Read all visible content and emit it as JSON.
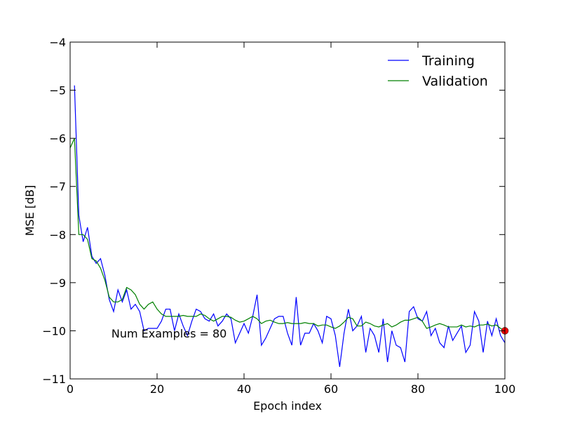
{
  "chart_data": {
    "type": "line",
    "title": "",
    "xlabel": "Epoch index",
    "ylabel": "MSE [dB]",
    "xlim": [
      0,
      100
    ],
    "ylim": [
      -11,
      -4
    ],
    "xticks": [
      0,
      20,
      40,
      60,
      80,
      100
    ],
    "yticks": [
      -11,
      -10,
      -9,
      -8,
      -7,
      -6,
      -5,
      -4
    ],
    "ytick_labels": [
      "−11",
      "−10",
      "−9",
      "−8",
      "−7",
      "−6",
      "−5",
      "−4"
    ],
    "grid": false,
    "legend_position": "top-right",
    "annotation": {
      "text": "Num Examples = 80",
      "x": 9.5,
      "y": -10.05
    },
    "marker": {
      "x": 100,
      "y": -10.0,
      "color": "#ff0000"
    },
    "series": [
      {
        "name": "Training",
        "color": "#0000ff",
        "x": [
          1,
          2,
          3,
          4,
          5,
          6,
          7,
          8,
          9,
          10,
          11,
          12,
          13,
          14,
          15,
          16,
          17,
          18,
          19,
          20,
          21,
          22,
          23,
          24,
          25,
          26,
          27,
          28,
          29,
          30,
          31,
          32,
          33,
          34,
          35,
          36,
          37,
          38,
          39,
          40,
          41,
          42,
          43,
          44,
          45,
          46,
          47,
          48,
          49,
          50,
          51,
          52,
          53,
          54,
          55,
          56,
          57,
          58,
          59,
          60,
          61,
          62,
          63,
          64,
          65,
          66,
          67,
          68,
          69,
          70,
          71,
          72,
          73,
          74,
          75,
          76,
          77,
          78,
          79,
          80,
          81,
          82,
          83,
          84,
          85,
          86,
          87,
          88,
          89,
          90,
          91,
          92,
          93,
          94,
          95,
          96,
          97,
          98,
          99,
          100
        ],
        "values": [
          -4.9,
          -7.6,
          -8.15,
          -7.85,
          -8.45,
          -8.6,
          -8.5,
          -8.85,
          -9.35,
          -9.6,
          -9.15,
          -9.4,
          -9.15,
          -9.55,
          -9.45,
          -9.6,
          -10.0,
          -9.95,
          -9.95,
          -9.95,
          -9.8,
          -9.55,
          -9.55,
          -10.0,
          -9.65,
          -9.9,
          -10.1,
          -9.8,
          -9.55,
          -9.6,
          -9.75,
          -9.8,
          -9.65,
          -9.9,
          -9.8,
          -9.65,
          -9.75,
          -10.25,
          -10.05,
          -9.85,
          -10.05,
          -9.7,
          -9.25,
          -10.3,
          -10.15,
          -9.95,
          -9.75,
          -9.7,
          -9.7,
          -10.05,
          -10.3,
          -9.3,
          -10.3,
          -10.05,
          -10.05,
          -9.85,
          -10.0,
          -10.25,
          -9.7,
          -9.75,
          -10.1,
          -10.75,
          -10.05,
          -9.55,
          -10.0,
          -9.9,
          -9.7,
          -10.45,
          -9.95,
          -10.1,
          -10.45,
          -9.75,
          -10.65,
          -10.0,
          -10.3,
          -10.35,
          -10.65,
          -9.6,
          -9.5,
          -9.75,
          -9.8,
          -9.6,
          -10.1,
          -9.95,
          -10.25,
          -10.35,
          -9.9,
          -10.2,
          -10.05,
          -9.9,
          -10.45,
          -10.3,
          -9.6,
          -9.8,
          -10.45,
          -9.8,
          -10.1,
          -9.75,
          -10.1,
          -10.25
        ]
      },
      {
        "name": "Validation",
        "color": "#008000",
        "x": [
          0,
          1,
          2,
          3,
          4,
          5,
          6,
          7,
          8,
          9,
          10,
          11,
          12,
          13,
          14,
          15,
          16,
          17,
          18,
          19,
          20,
          21,
          22,
          23,
          24,
          25,
          26,
          27,
          28,
          29,
          30,
          31,
          32,
          33,
          34,
          35,
          36,
          37,
          38,
          39,
          40,
          41,
          42,
          43,
          44,
          45,
          46,
          47,
          48,
          49,
          50,
          51,
          52,
          53,
          54,
          55,
          56,
          57,
          58,
          59,
          60,
          61,
          62,
          63,
          64,
          65,
          66,
          67,
          68,
          69,
          70,
          71,
          72,
          73,
          74,
          75,
          76,
          77,
          78,
          79,
          80,
          81,
          82,
          83,
          84,
          85,
          86,
          87,
          88,
          89,
          90,
          91,
          92,
          93,
          94,
          95,
          96,
          97,
          98,
          99,
          100
        ],
        "values": [
          -6.2,
          -6.0,
          -8.0,
          -8.0,
          -8.1,
          -8.5,
          -8.55,
          -8.7,
          -8.95,
          -9.3,
          -9.4,
          -9.4,
          -9.35,
          -9.1,
          -9.15,
          -9.25,
          -9.45,
          -9.55,
          -9.45,
          -9.4,
          -9.55,
          -9.65,
          -9.7,
          -9.7,
          -9.7,
          -9.7,
          -9.68,
          -9.7,
          -9.7,
          -9.7,
          -9.65,
          -9.68,
          -9.75,
          -9.8,
          -9.75,
          -9.7,
          -9.7,
          -9.72,
          -9.78,
          -9.82,
          -9.8,
          -9.75,
          -9.7,
          -9.75,
          -9.85,
          -9.8,
          -9.78,
          -9.82,
          -9.85,
          -9.85,
          -9.83,
          -9.85,
          -9.85,
          -9.85,
          -9.83,
          -9.85,
          -9.85,
          -9.9,
          -9.88,
          -9.88,
          -9.92,
          -9.95,
          -9.9,
          -9.82,
          -9.72,
          -9.75,
          -9.9,
          -9.9,
          -9.82,
          -9.85,
          -9.9,
          -9.92,
          -9.88,
          -9.85,
          -9.92,
          -9.88,
          -9.82,
          -9.78,
          -9.78,
          -9.75,
          -9.72,
          -9.8,
          -9.95,
          -9.92,
          -9.88,
          -9.85,
          -9.88,
          -9.92,
          -9.92,
          -9.92,
          -9.88,
          -9.92,
          -9.9,
          -9.92,
          -9.88,
          -9.88,
          -9.86,
          -9.9,
          -9.88,
          -9.95,
          -10.0
        ]
      }
    ]
  }
}
